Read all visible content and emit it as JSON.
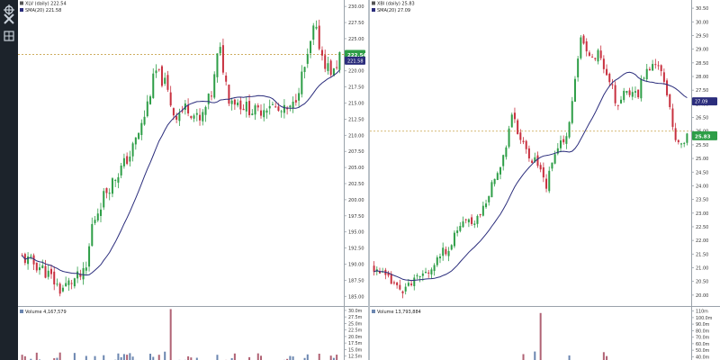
{
  "toolbar": {
    "items": [
      {
        "name": "crosshair-icon"
      },
      {
        "name": "tools-icon"
      },
      {
        "name": "layout-grid-icon"
      }
    ]
  },
  "colors": {
    "up": "#2e9e47",
    "down": "#c8303f",
    "sma": "#2b2d7c",
    "volume_up": "#6b86b0",
    "volume_down": "#b06274",
    "ref_line": "#c8a24a",
    "price_badge_fill": "#2e9e47",
    "sma_badge_fill": "#2b2d7c"
  },
  "chart_data": [
    {
      "type": "candlestick",
      "legend": {
        "ticker": "XLV (daily) 222.54",
        "sma": "SMA(20) 221.58"
      },
      "ylim": [
        183.5,
        231
      ],
      "y_ticks": [
        "230.00",
        "227.50",
        "225.00",
        "222.50",
        "220.00",
        "217.50",
        "215.00",
        "212.50",
        "210.00",
        "207.50",
        "205.00",
        "202.50",
        "200.00",
        "197.50",
        "195.00",
        "192.50",
        "190.00",
        "187.50",
        "185.00"
      ],
      "tick_values": [
        230,
        227.5,
        225,
        222.5,
        220,
        217.5,
        215,
        212.5,
        210,
        207.5,
        205,
        202.5,
        200,
        197.5,
        195,
        192.5,
        190,
        187.5,
        185
      ],
      "last_price": {
        "value": 222.54,
        "label": "222.54"
      },
      "sma_last": {
        "value": 221.58,
        "label": "221.58"
      },
      "ref_price": 222.54,
      "volume": {
        "label": "Volume 4,167,579",
        "ylim": [
          11,
          31
        ],
        "y_ticks": [
          "30.0m",
          "27.5m",
          "25.0m",
          "22.5m",
          "20.0m",
          "17.5m",
          "15.0m",
          "12.5m"
        ],
        "tick_values": [
          30,
          27.5,
          25,
          22.5,
          20,
          17.5,
          15,
          12.5
        ]
      }
    },
    {
      "type": "candlestick",
      "legend": {
        "ticker": "XBI (daily) 25.83",
        "sma": "SMA(20) 27.09"
      },
      "ylim": [
        19.6,
        30.8
      ],
      "y_ticks": [
        "30.50",
        "30.00",
        "29.50",
        "29.00",
        "28.50",
        "28.00",
        "27.50",
        "27.00",
        "26.50",
        "26.00",
        "25.50",
        "25.00",
        "24.50",
        "24.00",
        "23.50",
        "23.00",
        "22.50",
        "22.00",
        "21.50",
        "21.00",
        "20.50",
        "20.00"
      ],
      "tick_values": [
        30.5,
        30,
        29.5,
        29,
        28.5,
        28,
        27.5,
        27,
        26.5,
        26,
        25.5,
        25,
        24.5,
        24,
        23.5,
        23,
        22.5,
        22,
        21.5,
        21,
        20.5,
        20
      ],
      "last_price": {
        "value": 25.83,
        "label": "25.83"
      },
      "sma_last": {
        "value": 27.09,
        "label": "27.09"
      },
      "ref_price": 26.0,
      "volume": {
        "label": "Volume 13,793,884",
        "ylim": [
          35,
          115
        ],
        "y_ticks": [
          "110m",
          "100.0m",
          "90.0m",
          "80.0m",
          "70.0m",
          "60.0m",
          "50.0m",
          "40.0m"
        ],
        "tick_values": [
          110,
          100,
          90,
          80,
          70,
          60,
          50,
          40
        ]
      }
    }
  ]
}
